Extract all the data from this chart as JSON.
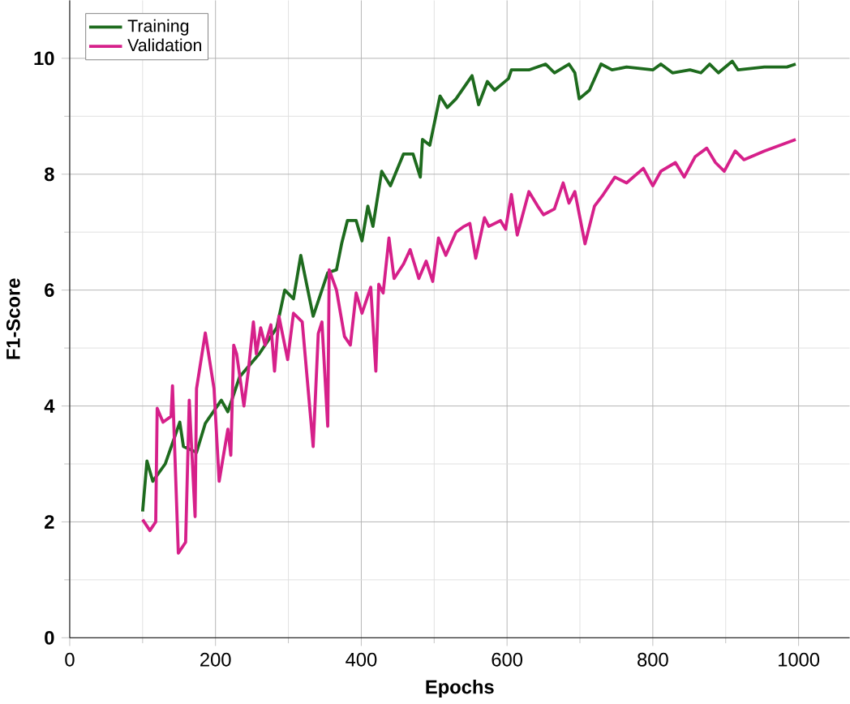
{
  "chart_data": {
    "type": "line",
    "xlabel": "Epochs",
    "ylabel": "F1-Score",
    "xlim": [
      0,
      1070
    ],
    "ylim": [
      0,
      11
    ],
    "xticks": [
      0,
      200,
      400,
      600,
      800,
      1000
    ],
    "yticks": [
      0,
      2,
      4,
      6,
      8,
      10
    ],
    "grid": true,
    "legend": "top left",
    "line_style": "solid",
    "marker": "none",
    "series": [
      {
        "name": "Training",
        "color": "#1e6b1e",
        "x": [
          100,
          106,
          114,
          131,
          151,
          156,
          174,
          186,
          208,
          217,
          233,
          260,
          284,
          295,
          307,
          317,
          334,
          354,
          366,
          373,
          381,
          393,
          401,
          409,
          416,
          428,
          440,
          458,
          471,
          481,
          484,
          494,
          508,
          518,
          530,
          552,
          561,
          573,
          583,
          602,
          606,
          630,
          653,
          665,
          685,
          693,
          699,
          713,
          729,
          744,
          764,
          800,
          811,
          827,
          851,
          866,
          878,
          890,
          909,
          917,
          953,
          984,
          996
        ],
        "values": [
          2.18,
          3.05,
          2.7,
          3.0,
          3.72,
          3.3,
          3.2,
          3.7,
          4.1,
          3.9,
          4.5,
          4.9,
          5.35,
          6.0,
          5.85,
          6.6,
          5.55,
          6.3,
          6.35,
          6.8,
          7.2,
          7.2,
          6.85,
          7.45,
          7.1,
          8.05,
          7.8,
          8.35,
          8.35,
          7.95,
          8.6,
          8.5,
          9.35,
          9.15,
          9.3,
          9.7,
          9.2,
          9.6,
          9.45,
          9.65,
          9.8,
          9.8,
          9.9,
          9.75,
          9.9,
          9.75,
          9.3,
          9.45,
          9.9,
          9.8,
          9.85,
          9.8,
          9.9,
          9.75,
          9.8,
          9.75,
          9.9,
          9.75,
          9.95,
          9.8,
          9.85,
          9.85,
          9.9
        ]
      },
      {
        "name": "Validation",
        "color": "#d6208a",
        "x": [
          100,
          110,
          118,
          120,
          128,
          139,
          141,
          149,
          159,
          164,
          172,
          174,
          186,
          198,
          205,
          217,
          221,
          225,
          229,
          239,
          245,
          252,
          256,
          262,
          268,
          276,
          281,
          287,
          299,
          307,
          319,
          334,
          341,
          346,
          354,
          356,
          366,
          377,
          385,
          393,
          401,
          413,
          420,
          424,
          430,
          438,
          445,
          458,
          467,
          479,
          489,
          498,
          506,
          516,
          530,
          541,
          549,
          557,
          569,
          575,
          591,
          598,
          606,
          614,
          630,
          642,
          650,
          665,
          677,
          685,
          693,
          707,
          720,
          732,
          748,
          764,
          787,
          800,
          811,
          831,
          843,
          858,
          874,
          886,
          898,
          913,
          925,
          953,
          996
        ],
        "values": [
          2.04,
          1.85,
          2.0,
          3.96,
          3.72,
          3.82,
          4.35,
          1.46,
          1.65,
          4.1,
          2.09,
          4.3,
          5.26,
          4.3,
          2.7,
          3.6,
          3.15,
          5.05,
          4.9,
          4.0,
          4.6,
          5.45,
          4.9,
          5.35,
          5.05,
          5.4,
          4.6,
          5.55,
          4.8,
          5.6,
          5.45,
          3.3,
          5.25,
          5.45,
          3.65,
          6.35,
          6.0,
          5.2,
          5.05,
          5.95,
          5.6,
          6.05,
          4.6,
          6.1,
          5.95,
          6.9,
          6.2,
          6.45,
          6.7,
          6.2,
          6.5,
          6.15,
          6.9,
          6.6,
          7.0,
          7.1,
          7.15,
          6.55,
          7.25,
          7.1,
          7.2,
          7.05,
          7.65,
          6.95,
          7.7,
          7.45,
          7.3,
          7.4,
          7.85,
          7.5,
          7.7,
          6.8,
          7.45,
          7.65,
          7.95,
          7.85,
          8.1,
          7.8,
          8.05,
          8.2,
          7.95,
          8.3,
          8.45,
          8.2,
          8.05,
          8.4,
          8.25,
          8.4,
          8.6
        ]
      }
    ]
  }
}
